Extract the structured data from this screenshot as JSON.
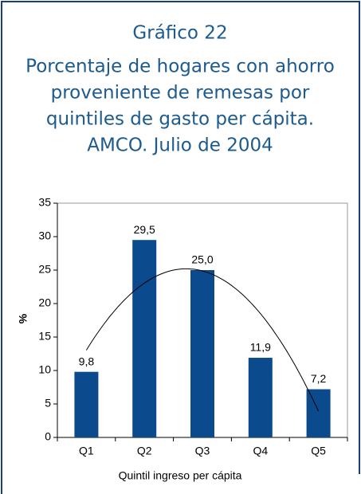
{
  "chart_data": {
    "type": "bar",
    "title": "Gráfico 22",
    "subtitle": [
      "Porcentaje de hogares con ahorro",
      "proveniente de remesas por",
      "quintiles de gasto per cápita.",
      "AMCO. Julio de 2004"
    ],
    "x_label": "Quintil ingreso per cápita",
    "y_label": "%",
    "categories": [
      "Q1",
      "Q2",
      "Q3",
      "Q4",
      "Q5"
    ],
    "values": [
      9.8,
      29.5,
      25.0,
      11.9,
      7.2
    ],
    "value_labels": [
      "9,8",
      "29,5",
      "25,0",
      "11,9",
      "7,2"
    ],
    "color": "#0b4a8c",
    "ylim": [
      0,
      35
    ],
    "yticks": [
      0,
      5,
      10,
      15,
      20,
      25,
      30,
      35
    ],
    "trendline": "polynomial"
  }
}
